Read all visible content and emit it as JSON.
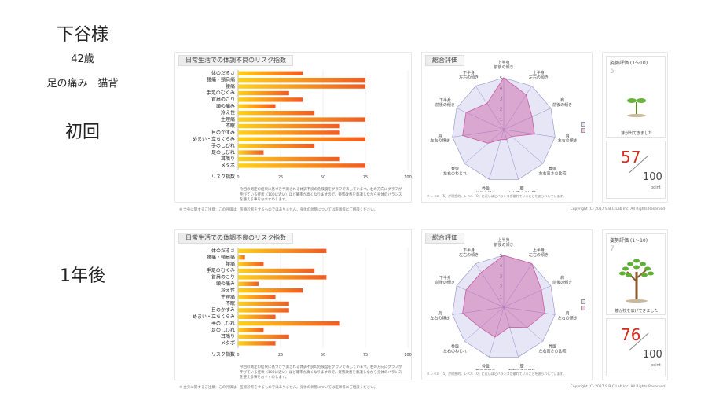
{
  "patient": {
    "name": "下谷様",
    "age": "42歳",
    "symptoms": "足の痛み　猫背"
  },
  "common": {
    "bar_title": "日常生活での体調不良のリスク指数",
    "radar_title": "総合評価",
    "risk_axis_label": "リスク指数",
    "categories": [
      "体のだるさ",
      "腰痛・頸肩痛",
      "腰痛",
      "手足のむくみ",
      "首肩のこり",
      "頭の痛み",
      "冷え性",
      "生理痛",
      "不眠",
      "目のかすみ",
      "めまい・立ちくらみ",
      "手のしびれ",
      "足のしびれ",
      "耳鳴り",
      "メタボ"
    ],
    "category_note": "(女性のみ)",
    "x_ticks": [
      "0",
      "25",
      "50",
      "75",
      "100"
    ],
    "description": "今回の測定の結果に基づき予測される体調不良の危険度をグラフで表しています。右の方向にグラフが伸びている症状（100に近い）ほど確率が高くなりますので、姿勢改善を意識しながら身体のバランスを整える事をおすすめします。",
    "radar_labels": [
      "上半身\n前後の傾き",
      "上半身\n左右の傾き",
      "肩\n前後の傾き",
      "肩\n左右の傾き",
      "骨盤\n左右高さの比較",
      "膝\n左右高さの比較",
      "骨盤\n前後の傾き",
      "骨盤\n左右のねじれ",
      "肩\n左右の傾き",
      "下半身\n前後の傾き",
      "下半身\n左右の傾き"
    ],
    "radar_ticks": [
      "1",
      "2",
      "3",
      "4",
      "5"
    ],
    "radar_note": "※ レベル「5」が理想的。レベル「0」に近いほどバランスが崩れていることをあらわしています。",
    "posture_title": "姿勢評価",
    "posture_range": "(1〜10)",
    "score_den": "100",
    "score_unit": "point",
    "footer": "※ 全身に関するご注意：この評価は、医療診断をするものではありません。身体の状態については医師等にご相談ください。",
    "copyright": "Copyright (C) 2017 S.B.C Lab Inc. All Rights Reserved"
  },
  "visits": [
    {
      "label": "初回",
      "posture_value": "5",
      "posture_caption": "芽が出てきました",
      "score": "57",
      "risk_values": [
        38,
        75,
        75,
        30,
        38,
        22,
        45,
        75,
        60,
        60,
        75,
        45,
        15,
        60,
        75
      ],
      "radar_values": [
        5,
        4,
        3,
        3,
        1,
        1,
        1,
        2,
        4,
        4,
        3
      ]
    },
    {
      "label": "1年後",
      "posture_value": "7",
      "posture_caption": "樹が枝を広げてきました",
      "score": "76",
      "risk_values": [
        52,
        4,
        15,
        45,
        52,
        12,
        38,
        22,
        30,
        30,
        22,
        60,
        15,
        30,
        22
      ],
      "radar_values": [
        5,
        5,
        4,
        4,
        3,
        2,
        3,
        3,
        4,
        4,
        4
      ]
    }
  ],
  "colors": {
    "bar_start": "#ffd21a",
    "bar_end": "#f15a22",
    "radar_fill": "#c95aa2",
    "radar_grid": "#8f8fc8",
    "score_red": "#d42b1e"
  }
}
